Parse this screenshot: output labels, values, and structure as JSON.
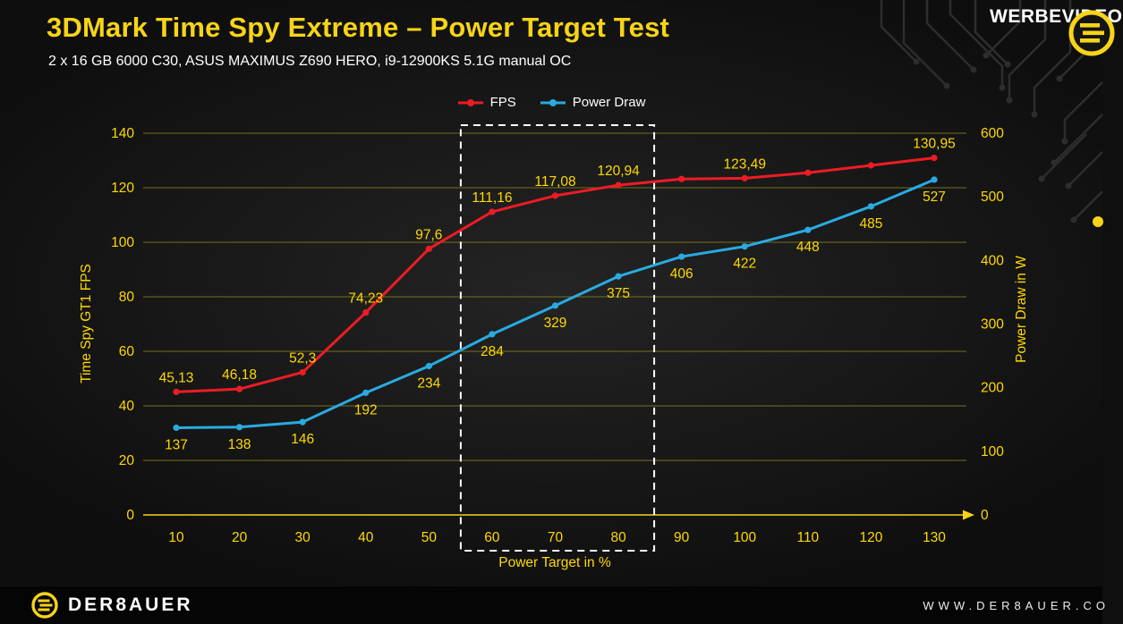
{
  "header": {
    "title": "3DMark Time Spy Extreme – Power Target Test",
    "subtitle": "2 x 16 GB 6000 C30, ASUS MAXIMUS Z690 HERO, i9-12900KS 5.1G manual OC",
    "watermark": "WERBEVIDEO"
  },
  "legend": {
    "items": [
      {
        "label": "FPS",
        "color": "#ed1c24"
      },
      {
        "label": "Power Draw",
        "color": "#29abe2"
      }
    ]
  },
  "chart_data": {
    "type": "line",
    "x": [
      10,
      20,
      30,
      40,
      50,
      60,
      70,
      80,
      90,
      100,
      110,
      120,
      130
    ],
    "x_tick_labels": [
      "10",
      "20",
      "30",
      "40",
      "50",
      "60",
      "70",
      "80",
      "90",
      "100",
      "110",
      "120",
      "130"
    ],
    "xlabel": "Power Target in %",
    "left_axis": {
      "label": "Time Spy GT1 FPS",
      "min": 0,
      "max": 140,
      "step": 20,
      "ticks": [
        0,
        20,
        40,
        60,
        80,
        100,
        120,
        140
      ]
    },
    "right_axis": {
      "label": "Power Draw in W",
      "min": 0,
      "max": 600,
      "step": 100,
      "ticks": [
        0,
        100,
        200,
        300,
        400,
        500,
        600
      ]
    },
    "series": [
      {
        "name": "FPS",
        "axis": "left",
        "color": "#ed1c24",
        "values": [
          45.13,
          46.18,
          52.3,
          74.23,
          97.6,
          111.16,
          117.08,
          120.94,
          123.2,
          123.49,
          125.5,
          128.2,
          130.95
        ],
        "point_labels": [
          "45,13",
          "46,18",
          "52,3",
          "74,23",
          "97,6",
          "111,16",
          "117,08",
          "120,94",
          "",
          "123,49",
          "",
          "",
          "130,95"
        ],
        "label_position": "above"
      },
      {
        "name": "Power Draw",
        "axis": "right",
        "color": "#29abe2",
        "values": [
          137,
          138,
          146,
          192,
          234,
          284,
          329,
          375,
          406,
          422,
          448,
          485,
          527
        ],
        "point_labels": [
          "137",
          "138",
          "146",
          "192",
          "234",
          "284",
          "329",
          "375",
          "406",
          "422",
          "448",
          "485",
          "527"
        ],
        "label_position": "below"
      }
    ],
    "highlight_region": {
      "x_from": 60,
      "x_to": 80,
      "style": "dashed-white-box"
    },
    "grid": "horizontal",
    "legend_position": "top-center"
  },
  "footer": {
    "brand_text": "DER8AUER",
    "website_text": "WWW.DER8AUER.CO"
  },
  "theme": {
    "background": "#151515",
    "accent_yellow": "#f7d417",
    "label_yellow": "#ffd900",
    "grid_color": "#74701f",
    "text_white": "#ffffff",
    "fps_red": "#ed1c24",
    "power_blue": "#29abe2"
  }
}
